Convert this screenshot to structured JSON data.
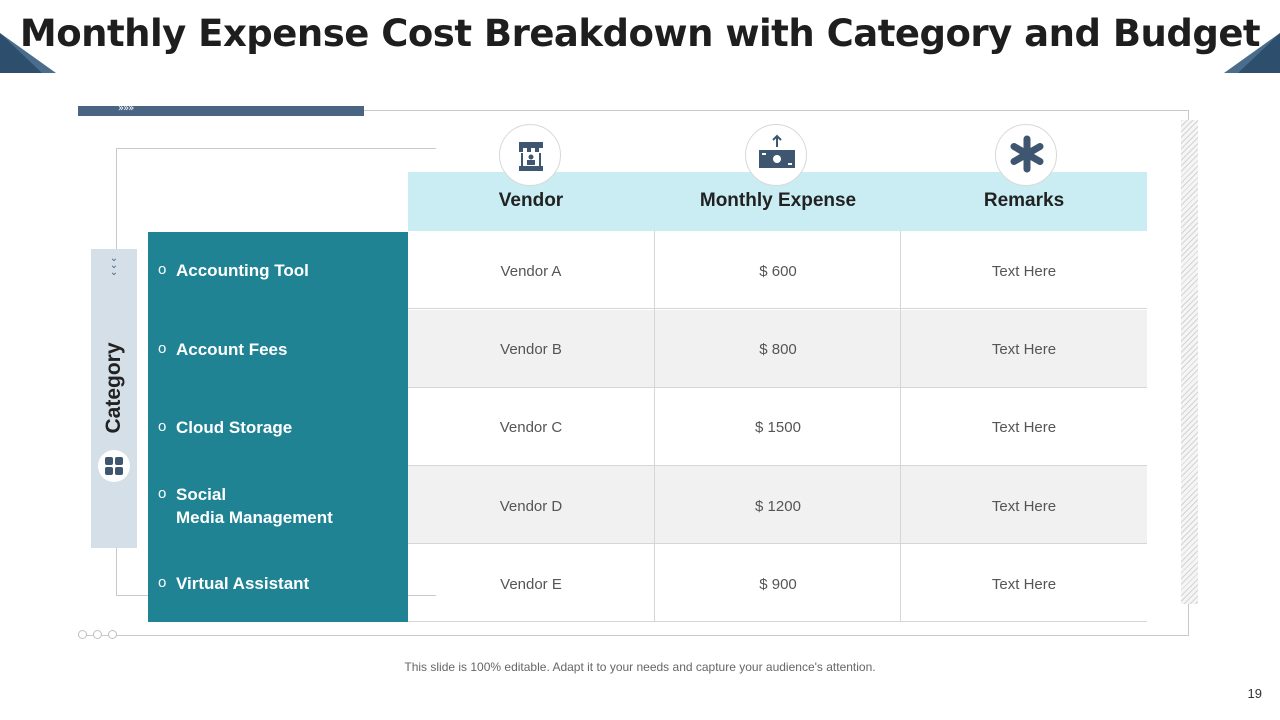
{
  "title": "Monthly Expense Cost Breakdown with Category and Budget",
  "side_label": "Category",
  "columns": [
    "Vendor",
    "Monthly  Expense",
    "Remarks"
  ],
  "column_icons": [
    "vendor-stall-icon",
    "money-transfer-icon",
    "asterisk-icon"
  ],
  "categories": [
    {
      "line1": "Accounting Tool",
      "line2": ""
    },
    {
      "line1": "Account Fees",
      "line2": ""
    },
    {
      "line1": "Cloud Storage",
      "line2": ""
    },
    {
      "line1": "Social",
      "line2": "Media Management"
    },
    {
      "line1": "Virtual Assistant",
      "line2": ""
    }
  ],
  "rows": [
    {
      "vendor": "Vendor A",
      "expense": "$ 600",
      "remarks": "Text Here"
    },
    {
      "vendor": "Vendor B",
      "expense": "$ 800",
      "remarks": "Text Here"
    },
    {
      "vendor": "Vendor C",
      "expense": "$ 1500",
      "remarks": "Text Here"
    },
    {
      "vendor": "Vendor D",
      "expense": "$ 1200",
      "remarks": "Text Here"
    },
    {
      "vendor": "Vendor E",
      "expense": "$ 900",
      "remarks": "Text Here"
    }
  ],
  "bullet": "o",
  "footnote": "This slide is 100% editable. Adapt it to your needs and capture your audience's attention.",
  "page_number": "19",
  "colors": {
    "teal": "#1f8394",
    "header": "#c9edf3",
    "navy": "#4a6584",
    "side": "#d5dfe8"
  }
}
